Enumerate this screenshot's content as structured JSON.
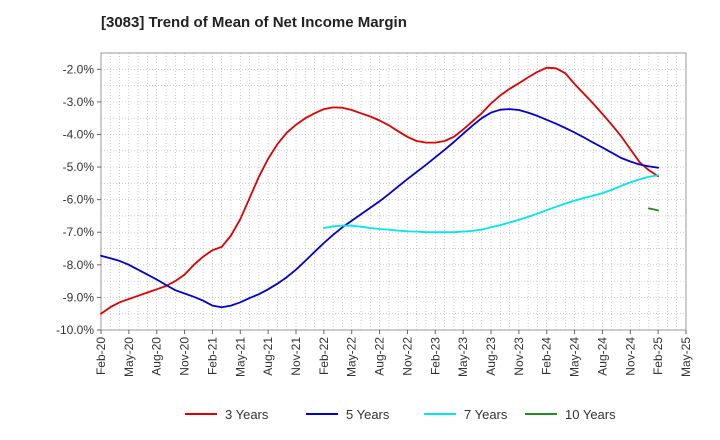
{
  "chart_data": {
    "type": "line",
    "title": "[3083]  Trend of Mean of Net Income Margin",
    "xlabel": "",
    "ylabel": "",
    "x_tick_labels": [
      "Feb-20",
      "May-20",
      "Aug-20",
      "Nov-20",
      "Feb-21",
      "May-21",
      "Aug-21",
      "Nov-21",
      "Feb-22",
      "May-22",
      "Aug-22",
      "Nov-22",
      "Feb-23",
      "May-23",
      "Aug-23",
      "Nov-23",
      "Feb-24",
      "May-24",
      "Aug-24",
      "Nov-24",
      "Feb-25",
      "May-25"
    ],
    "y_tick_labels": [
      "-2.0%",
      "-3.0%",
      "-4.0%",
      "-5.0%",
      "-6.0%",
      "-7.0%",
      "-8.0%",
      "-9.0%",
      "-10.0%"
    ],
    "y_ticks": [
      -2,
      -3,
      -4,
      -5,
      -6,
      -7,
      -8,
      -9,
      -10
    ],
    "ylim": [
      -10,
      -1.5
    ],
    "grid": true,
    "legend_position": "bottom",
    "series": [
      {
        "name": "3 Years",
        "color": "#dd0000",
        "points": [
          [
            "Feb-20",
            -9.5
          ],
          [
            "Mar-20",
            -9.3
          ],
          [
            "Apr-20",
            -9.15
          ],
          [
            "May-20",
            -9.05
          ],
          [
            "Jun-20",
            -8.95
          ],
          [
            "Jul-20",
            -8.85
          ],
          [
            "Aug-20",
            -8.75
          ],
          [
            "Sep-20",
            -8.65
          ],
          [
            "Oct-20",
            -8.5
          ],
          [
            "Nov-20",
            -8.3
          ],
          [
            "Dec-20",
            -8.0
          ],
          [
            "Jan-21",
            -7.75
          ],
          [
            "Feb-21",
            -7.55
          ],
          [
            "Mar-21",
            -7.45
          ],
          [
            "Apr-21",
            -7.1
          ],
          [
            "May-21",
            -6.6
          ],
          [
            "Jun-21",
            -5.95
          ],
          [
            "Jul-21",
            -5.3
          ],
          [
            "Aug-21",
            -4.75
          ],
          [
            "Sep-21",
            -4.3
          ],
          [
            "Oct-21",
            -3.95
          ],
          [
            "Nov-21",
            -3.7
          ],
          [
            "Dec-21",
            -3.5
          ],
          [
            "Jan-22",
            -3.35
          ],
          [
            "Feb-22",
            -3.22
          ],
          [
            "Mar-22",
            -3.17
          ],
          [
            "Apr-22",
            -3.18
          ],
          [
            "May-22",
            -3.25
          ],
          [
            "Jun-22",
            -3.35
          ],
          [
            "Jul-22",
            -3.45
          ],
          [
            "Aug-22",
            -3.57
          ],
          [
            "Sep-22",
            -3.72
          ],
          [
            "Oct-22",
            -3.9
          ],
          [
            "Nov-22",
            -4.07
          ],
          [
            "Dec-22",
            -4.2
          ],
          [
            "Jan-23",
            -4.25
          ],
          [
            "Feb-23",
            -4.25
          ],
          [
            "Mar-23",
            -4.2
          ],
          [
            "Apr-23",
            -4.07
          ],
          [
            "May-23",
            -3.85
          ],
          [
            "Jun-23",
            -3.6
          ],
          [
            "Jul-23",
            -3.35
          ],
          [
            "Aug-23",
            -3.05
          ],
          [
            "Sep-23",
            -2.8
          ],
          [
            "Oct-23",
            -2.6
          ],
          [
            "Nov-23",
            -2.43
          ],
          [
            "Dec-23",
            -2.25
          ],
          [
            "Jan-24",
            -2.08
          ],
          [
            "Feb-24",
            -1.95
          ],
          [
            "Mar-24",
            -1.97
          ],
          [
            "Apr-24",
            -2.12
          ],
          [
            "May-24",
            -2.45
          ],
          [
            "Jun-24",
            -2.75
          ],
          [
            "Jul-24",
            -3.05
          ],
          [
            "Aug-24",
            -3.37
          ],
          [
            "Sep-24",
            -3.7
          ],
          [
            "Oct-24",
            -4.05
          ],
          [
            "Nov-24",
            -4.45
          ],
          [
            "Dec-24",
            -4.85
          ],
          [
            "Jan-25",
            -5.1
          ],
          [
            "Feb-25",
            -5.28
          ]
        ]
      },
      {
        "name": "5 Years",
        "color": "#0000cc",
        "points": [
          [
            "Feb-20",
            -7.72
          ],
          [
            "Mar-20",
            -7.8
          ],
          [
            "Apr-20",
            -7.88
          ],
          [
            "May-20",
            -8.0
          ],
          [
            "Jun-20",
            -8.15
          ],
          [
            "Jul-20",
            -8.3
          ],
          [
            "Aug-20",
            -8.45
          ],
          [
            "Sep-20",
            -8.62
          ],
          [
            "Oct-20",
            -8.78
          ],
          [
            "Nov-20",
            -8.88
          ],
          [
            "Dec-20",
            -8.98
          ],
          [
            "Jan-21",
            -9.1
          ],
          [
            "Feb-21",
            -9.25
          ],
          [
            "Mar-21",
            -9.3
          ],
          [
            "Apr-21",
            -9.25
          ],
          [
            "May-21",
            -9.15
          ],
          [
            "Jun-21",
            -9.02
          ],
          [
            "Jul-21",
            -8.9
          ],
          [
            "Aug-21",
            -8.75
          ],
          [
            "Sep-21",
            -8.58
          ],
          [
            "Oct-21",
            -8.38
          ],
          [
            "Nov-21",
            -8.15
          ],
          [
            "Dec-21",
            -7.88
          ],
          [
            "Jan-22",
            -7.6
          ],
          [
            "Feb-22",
            -7.33
          ],
          [
            "Mar-22",
            -7.08
          ],
          [
            "Apr-22",
            -6.85
          ],
          [
            "May-22",
            -6.65
          ],
          [
            "Jun-22",
            -6.45
          ],
          [
            "Jul-22",
            -6.25
          ],
          [
            "Aug-22",
            -6.05
          ],
          [
            "Sep-22",
            -5.83
          ],
          [
            "Oct-22",
            -5.6
          ],
          [
            "Nov-22",
            -5.37
          ],
          [
            "Dec-22",
            -5.15
          ],
          [
            "Jan-23",
            -4.93
          ],
          [
            "Feb-23",
            -4.7
          ],
          [
            "Mar-23",
            -4.47
          ],
          [
            "Apr-23",
            -4.23
          ],
          [
            "May-23",
            -3.98
          ],
          [
            "Jun-23",
            -3.73
          ],
          [
            "Jul-23",
            -3.5
          ],
          [
            "Aug-23",
            -3.33
          ],
          [
            "Sep-23",
            -3.24
          ],
          [
            "Oct-23",
            -3.22
          ],
          [
            "Nov-23",
            -3.25
          ],
          [
            "Dec-23",
            -3.33
          ],
          [
            "Jan-24",
            -3.43
          ],
          [
            "Feb-24",
            -3.55
          ],
          [
            "Mar-24",
            -3.67
          ],
          [
            "Apr-24",
            -3.8
          ],
          [
            "May-24",
            -3.94
          ],
          [
            "Jun-24",
            -4.09
          ],
          [
            "Jul-24",
            -4.25
          ],
          [
            "Aug-24",
            -4.4
          ],
          [
            "Sep-24",
            -4.56
          ],
          [
            "Oct-24",
            -4.72
          ],
          [
            "Nov-24",
            -4.83
          ],
          [
            "Dec-24",
            -4.92
          ],
          [
            "Jan-25",
            -4.98
          ],
          [
            "Feb-25",
            -5.02
          ]
        ]
      },
      {
        "name": "7 Years",
        "color": "#00e5ee",
        "points": [
          [
            "Feb-22",
            -6.87
          ],
          [
            "Mar-22",
            -6.82
          ],
          [
            "Apr-22",
            -6.8
          ],
          [
            "May-22",
            -6.8
          ],
          [
            "Jun-22",
            -6.83
          ],
          [
            "Jul-22",
            -6.87
          ],
          [
            "Aug-22",
            -6.9
          ],
          [
            "Sep-22",
            -6.92
          ],
          [
            "Oct-22",
            -6.95
          ],
          [
            "Nov-22",
            -6.97
          ],
          [
            "Dec-22",
            -6.98
          ],
          [
            "Jan-23",
            -7.0
          ],
          [
            "Feb-23",
            -7.0
          ],
          [
            "Mar-23",
            -7.0
          ],
          [
            "Apr-23",
            -7.0
          ],
          [
            "May-23",
            -6.98
          ],
          [
            "Jun-23",
            -6.96
          ],
          [
            "Jul-23",
            -6.92
          ],
          [
            "Aug-23",
            -6.85
          ],
          [
            "Sep-23",
            -6.78
          ],
          [
            "Oct-23",
            -6.7
          ],
          [
            "Nov-23",
            -6.62
          ],
          [
            "Dec-23",
            -6.53
          ],
          [
            "Jan-24",
            -6.43
          ],
          [
            "Feb-24",
            -6.32
          ],
          [
            "Mar-24",
            -6.22
          ],
          [
            "Apr-24",
            -6.12
          ],
          [
            "May-24",
            -6.03
          ],
          [
            "Jun-24",
            -5.95
          ],
          [
            "Jul-24",
            -5.88
          ],
          [
            "Aug-24",
            -5.8
          ],
          [
            "Sep-24",
            -5.7
          ],
          [
            "Oct-24",
            -5.58
          ],
          [
            "Nov-24",
            -5.47
          ],
          [
            "Dec-24",
            -5.38
          ],
          [
            "Jan-25",
            -5.3
          ],
          [
            "Feb-25",
            -5.25
          ]
        ]
      },
      {
        "name": "10 Years",
        "color": "#228b22",
        "points": [
          [
            "Jan-25",
            -6.27
          ],
          [
            "Feb-25",
            -6.33
          ]
        ]
      }
    ]
  }
}
